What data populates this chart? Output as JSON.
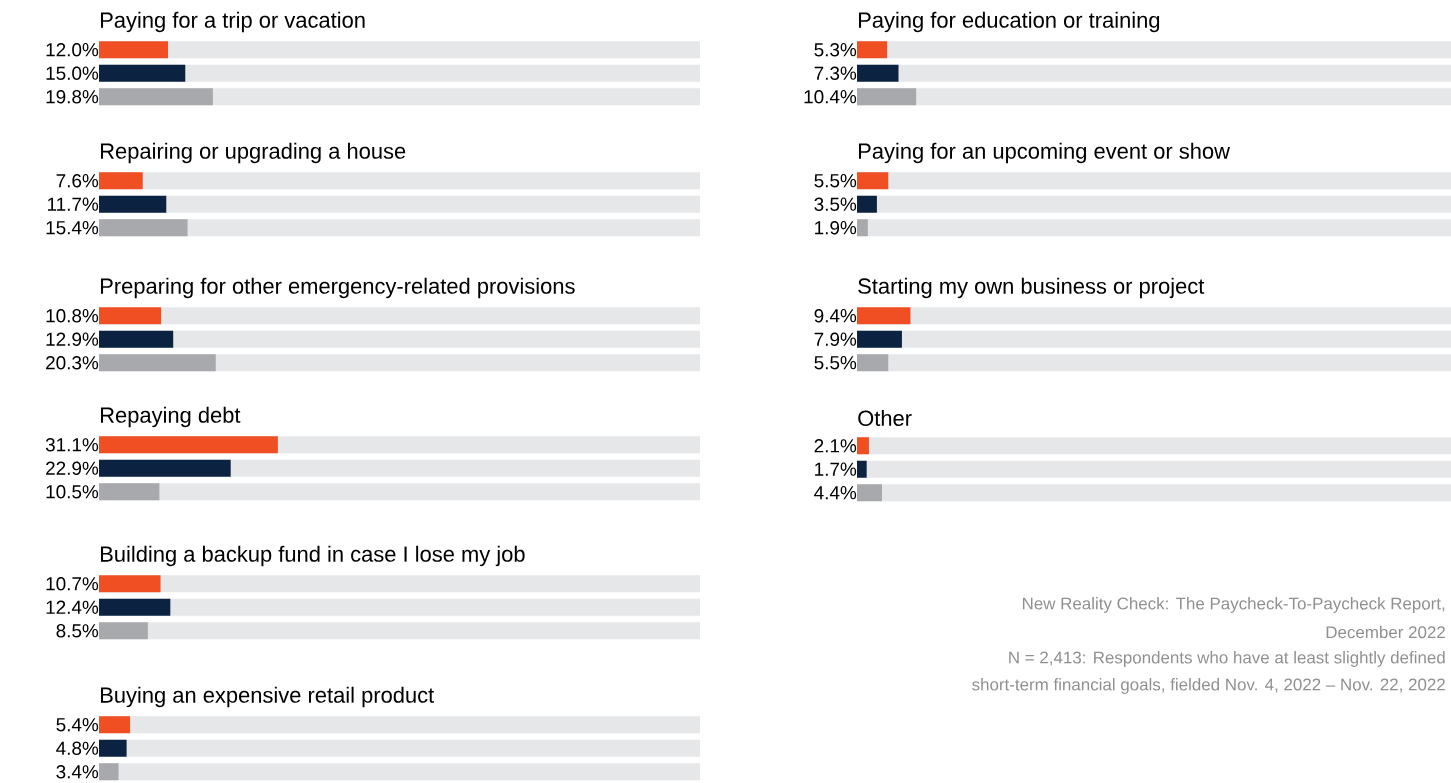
{
  "chart_data": [
    {
      "type": "bar",
      "orientation": "horizontal",
      "title": "Paying for a trip or vacation",
      "categories": [
        null,
        null,
        null
      ],
      "values": [
        12.0,
        15.0,
        19.8
      ],
      "value_labels": [
        "12.0%",
        "15.0%",
        "19.8%"
      ],
      "colors": [
        "#f04e23",
        "#0b2240",
        "#a7a9ac"
      ],
      "xlim": [
        0,
        104.5
      ]
    },
    {
      "type": "bar",
      "orientation": "horizontal",
      "title": "Paying for education or training",
      "categories": [
        null,
        null,
        null
      ],
      "values": [
        5.3,
        7.3,
        10.4
      ],
      "value_labels": [
        "5.3%",
        "7.3%",
        "10.4%"
      ],
      "colors": [
        "#f04e23",
        "#0b2240",
        "#a7a9ac"
      ],
      "xlim": [
        0,
        104.5
      ]
    },
    {
      "type": "bar",
      "orientation": "horizontal",
      "title": "Repairing or upgrading a house",
      "categories": [
        null,
        null,
        null
      ],
      "values": [
        7.6,
        11.7,
        15.4
      ],
      "value_labels": [
        "7.6%",
        "11.7%",
        "15.4%"
      ],
      "colors": [
        "#f04e23",
        "#0b2240",
        "#a7a9ac"
      ],
      "xlim": [
        0,
        104.5
      ]
    },
    {
      "type": "bar",
      "orientation": "horizontal",
      "title": "Paying for an upcoming event or show",
      "categories": [
        null,
        null,
        null
      ],
      "values": [
        5.5,
        3.5,
        1.9
      ],
      "value_labels": [
        "5.5%",
        "3.5%",
        "1.9%"
      ],
      "colors": [
        "#f04e23",
        "#0b2240",
        "#a7a9ac"
      ],
      "xlim": [
        0,
        104.5
      ]
    },
    {
      "type": "bar",
      "orientation": "horizontal",
      "title": "Preparing for other emergency-related provisions",
      "categories": [
        null,
        null,
        null
      ],
      "values": [
        10.8,
        12.9,
        20.3
      ],
      "value_labels": [
        "10.8%",
        "12.9%",
        "20.3%"
      ],
      "colors": [
        "#f04e23",
        "#0b2240",
        "#a7a9ac"
      ],
      "xlim": [
        0,
        104.5
      ]
    },
    {
      "type": "bar",
      "orientation": "horizontal",
      "title": "Starting my own business or project",
      "categories": [
        null,
        null,
        null
      ],
      "values": [
        9.4,
        7.9,
        5.5
      ],
      "value_labels": [
        "9.4%",
        "7.9%",
        "5.5%"
      ],
      "colors": [
        "#f04e23",
        "#0b2240",
        "#a7a9ac"
      ],
      "xlim": [
        0,
        104.5
      ]
    },
    {
      "type": "bar",
      "orientation": "horizontal",
      "title": "Repaying debt",
      "categories": [
        null,
        null,
        null
      ],
      "values": [
        31.1,
        22.9,
        10.5
      ],
      "value_labels": [
        "31.1%",
        "22.9%",
        "10.5%"
      ],
      "colors": [
        "#f04e23",
        "#0b2240",
        "#a7a9ac"
      ],
      "xlim": [
        0,
        104.5
      ]
    },
    {
      "type": "bar",
      "orientation": "horizontal",
      "title": "Other",
      "categories": [
        null,
        null,
        null
      ],
      "values": [
        2.1,
        1.7,
        4.4
      ],
      "value_labels": [
        "2.1%",
        "1.7%",
        "4.4%"
      ],
      "colors": [
        "#f04e23",
        "#0b2240",
        "#a7a9ac"
      ],
      "xlim": [
        0,
        104.5
      ],
      "annotations": [
        "New Reality Check: The Paycheck-To-Paycheck Report,",
        "December 2022",
        "N = 2,413: Respondents who have at least slightly defined",
        "short-term financial goals, fielded Nov. 4, 2022 – Nov. 22, 2022"
      ]
    },
    {
      "type": "bar",
      "orientation": "horizontal",
      "title": "Building a backup fund in case I lose my job",
      "categories": [
        null,
        null,
        null
      ],
      "values": [
        10.7,
        12.4,
        8.5
      ],
      "value_labels": [
        "10.7%",
        "12.4%",
        "8.5%"
      ],
      "colors": [
        "#f04e23",
        "#0b2240",
        "#a7a9ac"
      ],
      "xlim": [
        0,
        104.5
      ]
    },
    {
      "type": "bar",
      "orientation": "horizontal",
      "title": "Buying an expensive retail product",
      "categories": [
        null,
        null,
        null
      ],
      "values": [
        5.4,
        4.8,
        3.4
      ],
      "value_labels": [
        "5.4%",
        "4.8%",
        "3.4%"
      ],
      "colors": [
        "#f04e23",
        "#0b2240",
        "#a7a9ac"
      ],
      "xlim": [
        0,
        104.5
      ]
    }
  ]
}
